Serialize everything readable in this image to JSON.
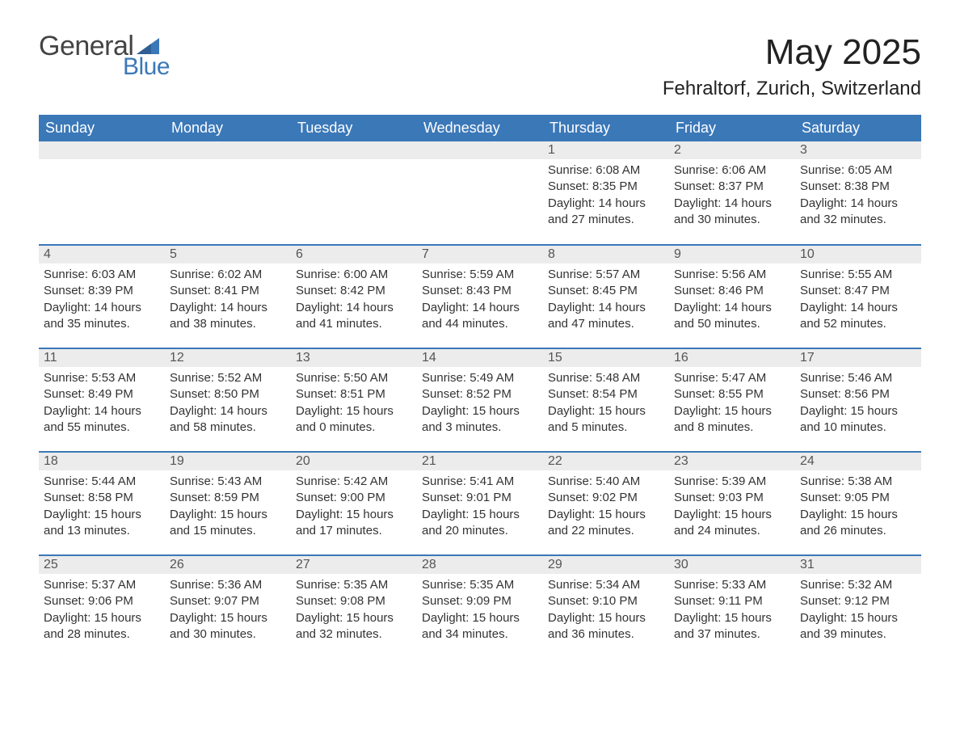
{
  "brand": {
    "word1": "General",
    "word2": "Blue",
    "accent_color": "#3b78b8"
  },
  "title": "May 2025",
  "location": "Fehraltorf, Zurich, Switzerland",
  "weekdays": [
    "Sunday",
    "Monday",
    "Tuesday",
    "Wednesday",
    "Thursday",
    "Friday",
    "Saturday"
  ],
  "colors": {
    "header_bg": "#3b78b8",
    "header_text": "#ffffff",
    "daynum_bg": "#ececec",
    "text": "#333333",
    "row_divider": "#3b78b8"
  },
  "weeks": [
    [
      null,
      null,
      null,
      null,
      {
        "n": "1",
        "sunrise": "Sunrise: 6:08 AM",
        "sunset": "Sunset: 8:35 PM",
        "daylight": "Daylight: 14 hours and 27 minutes."
      },
      {
        "n": "2",
        "sunrise": "Sunrise: 6:06 AM",
        "sunset": "Sunset: 8:37 PM",
        "daylight": "Daylight: 14 hours and 30 minutes."
      },
      {
        "n": "3",
        "sunrise": "Sunrise: 6:05 AM",
        "sunset": "Sunset: 8:38 PM",
        "daylight": "Daylight: 14 hours and 32 minutes."
      }
    ],
    [
      {
        "n": "4",
        "sunrise": "Sunrise: 6:03 AM",
        "sunset": "Sunset: 8:39 PM",
        "daylight": "Daylight: 14 hours and 35 minutes."
      },
      {
        "n": "5",
        "sunrise": "Sunrise: 6:02 AM",
        "sunset": "Sunset: 8:41 PM",
        "daylight": "Daylight: 14 hours and 38 minutes."
      },
      {
        "n": "6",
        "sunrise": "Sunrise: 6:00 AM",
        "sunset": "Sunset: 8:42 PM",
        "daylight": "Daylight: 14 hours and 41 minutes."
      },
      {
        "n": "7",
        "sunrise": "Sunrise: 5:59 AM",
        "sunset": "Sunset: 8:43 PM",
        "daylight": "Daylight: 14 hours and 44 minutes."
      },
      {
        "n": "8",
        "sunrise": "Sunrise: 5:57 AM",
        "sunset": "Sunset: 8:45 PM",
        "daylight": "Daylight: 14 hours and 47 minutes."
      },
      {
        "n": "9",
        "sunrise": "Sunrise: 5:56 AM",
        "sunset": "Sunset: 8:46 PM",
        "daylight": "Daylight: 14 hours and 50 minutes."
      },
      {
        "n": "10",
        "sunrise": "Sunrise: 5:55 AM",
        "sunset": "Sunset: 8:47 PM",
        "daylight": "Daylight: 14 hours and 52 minutes."
      }
    ],
    [
      {
        "n": "11",
        "sunrise": "Sunrise: 5:53 AM",
        "sunset": "Sunset: 8:49 PM",
        "daylight": "Daylight: 14 hours and 55 minutes."
      },
      {
        "n": "12",
        "sunrise": "Sunrise: 5:52 AM",
        "sunset": "Sunset: 8:50 PM",
        "daylight": "Daylight: 14 hours and 58 minutes."
      },
      {
        "n": "13",
        "sunrise": "Sunrise: 5:50 AM",
        "sunset": "Sunset: 8:51 PM",
        "daylight": "Daylight: 15 hours and 0 minutes."
      },
      {
        "n": "14",
        "sunrise": "Sunrise: 5:49 AM",
        "sunset": "Sunset: 8:52 PM",
        "daylight": "Daylight: 15 hours and 3 minutes."
      },
      {
        "n": "15",
        "sunrise": "Sunrise: 5:48 AM",
        "sunset": "Sunset: 8:54 PM",
        "daylight": "Daylight: 15 hours and 5 minutes."
      },
      {
        "n": "16",
        "sunrise": "Sunrise: 5:47 AM",
        "sunset": "Sunset: 8:55 PM",
        "daylight": "Daylight: 15 hours and 8 minutes."
      },
      {
        "n": "17",
        "sunrise": "Sunrise: 5:46 AM",
        "sunset": "Sunset: 8:56 PM",
        "daylight": "Daylight: 15 hours and 10 minutes."
      }
    ],
    [
      {
        "n": "18",
        "sunrise": "Sunrise: 5:44 AM",
        "sunset": "Sunset: 8:58 PM",
        "daylight": "Daylight: 15 hours and 13 minutes."
      },
      {
        "n": "19",
        "sunrise": "Sunrise: 5:43 AM",
        "sunset": "Sunset: 8:59 PM",
        "daylight": "Daylight: 15 hours and 15 minutes."
      },
      {
        "n": "20",
        "sunrise": "Sunrise: 5:42 AM",
        "sunset": "Sunset: 9:00 PM",
        "daylight": "Daylight: 15 hours and 17 minutes."
      },
      {
        "n": "21",
        "sunrise": "Sunrise: 5:41 AM",
        "sunset": "Sunset: 9:01 PM",
        "daylight": "Daylight: 15 hours and 20 minutes."
      },
      {
        "n": "22",
        "sunrise": "Sunrise: 5:40 AM",
        "sunset": "Sunset: 9:02 PM",
        "daylight": "Daylight: 15 hours and 22 minutes."
      },
      {
        "n": "23",
        "sunrise": "Sunrise: 5:39 AM",
        "sunset": "Sunset: 9:03 PM",
        "daylight": "Daylight: 15 hours and 24 minutes."
      },
      {
        "n": "24",
        "sunrise": "Sunrise: 5:38 AM",
        "sunset": "Sunset: 9:05 PM",
        "daylight": "Daylight: 15 hours and 26 minutes."
      }
    ],
    [
      {
        "n": "25",
        "sunrise": "Sunrise: 5:37 AM",
        "sunset": "Sunset: 9:06 PM",
        "daylight": "Daylight: 15 hours and 28 minutes."
      },
      {
        "n": "26",
        "sunrise": "Sunrise: 5:36 AM",
        "sunset": "Sunset: 9:07 PM",
        "daylight": "Daylight: 15 hours and 30 minutes."
      },
      {
        "n": "27",
        "sunrise": "Sunrise: 5:35 AM",
        "sunset": "Sunset: 9:08 PM",
        "daylight": "Daylight: 15 hours and 32 minutes."
      },
      {
        "n": "28",
        "sunrise": "Sunrise: 5:35 AM",
        "sunset": "Sunset: 9:09 PM",
        "daylight": "Daylight: 15 hours and 34 minutes."
      },
      {
        "n": "29",
        "sunrise": "Sunrise: 5:34 AM",
        "sunset": "Sunset: 9:10 PM",
        "daylight": "Daylight: 15 hours and 36 minutes."
      },
      {
        "n": "30",
        "sunrise": "Sunrise: 5:33 AM",
        "sunset": "Sunset: 9:11 PM",
        "daylight": "Daylight: 15 hours and 37 minutes."
      },
      {
        "n": "31",
        "sunrise": "Sunrise: 5:32 AM",
        "sunset": "Sunset: 9:12 PM",
        "daylight": "Daylight: 15 hours and 39 minutes."
      }
    ]
  ]
}
